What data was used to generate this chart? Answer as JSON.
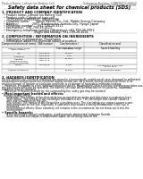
{
  "title": "Safety data sheet for chemical products (SDS)",
  "header_left": "Product Name: Lithium Ion Battery Cell",
  "header_right_line1": "Substance Number: 1SMB3EZ15-00010",
  "header_right_line2": "Established / Revision: Dec.7.2016",
  "section1_title": "1. PRODUCT AND COMPANY IDENTIFICATION",
  "section1_lines": [
    "  • Product name: Lithium Ion Battery Cell",
    "  • Product code: Cylindrical-type cell",
    "      (ICR18650, ICR18650L, ICR18650A)",
    "  • Company name:       Sanyo Electric Co., Ltd., Mobile Energy Company",
    "  • Address:               2001  Kamikosaka, Sumoto-City, Hyogo, Japan",
    "  • Telephone number :   +81-799-26-4111",
    "  • Fax number:  +81-799-26-4123",
    "  • Emergency telephone number (Weekdays) +81-799-26-3962",
    "                                    (Night and holiday) +81-799-26-4101"
  ],
  "section2_title": "2. COMPOSITION / INFORMATION ON INGREDIENTS",
  "section2_intro": "  • Substance or preparation: Preparation",
  "section2_sub": "  • Information about the chemical nature of product:",
  "table_col_headers": [
    "Component/chemical name",
    "CAS number",
    "Concentration /\nConcentration range",
    "Classification and\nhazard labeling"
  ],
  "table_rows": [
    [
      "Lithium cobalt oxide\n(LiMnCoNiO2)",
      "-",
      "(30-60%)",
      "-"
    ],
    [
      "Iron",
      "7439-89-6",
      "10-20%",
      "-"
    ],
    [
      "Aluminium",
      "7429-90-5",
      "2-6%",
      "-"
    ],
    [
      "Graphite\n(Baked graphite)\n(Artificial graphite)",
      "7782-42-5\n7782-42-5",
      "10-20%",
      "-"
    ],
    [
      "Copper",
      "7440-50-8",
      "5-10%",
      "Sensitization of the skin\ngroup No.2"
    ],
    [
      "Organic electrolyte",
      "-",
      "10-20%",
      "Inflammable liquid"
    ]
  ],
  "section3_title": "3. HAZARDS IDENTIFICATION",
  "section3_para1": "For the battery cell, chemical materials are stored in a hermetically sealed metal case, designed to withstand",
  "section3_para2": "temperatures and pressure-accumulated during normal use. As a result, during normal use, there is no",
  "section3_para3": "physical danger of ignition or explosion and there is no danger of hazardous materials leakage.",
  "section3_para4": "    However, if exposed to a fire, added mechanical shocks, decomposed, where electric overcharging takes use,",
  "section3_para5": "the gas nozzle vent can be operated. The battery cell case will be breached or fire patterns, hazardous",
  "section3_para6": "materials may be released.",
  "section3_para7": "    Moreover, if heated strongly by the surrounding fire, sooty gas may be emitted.",
  "section3_bullet1": "• Most important hazard and effects:",
  "section3_human": "Human health effects:",
  "section3_inhale": "    Inhalation: The release of the electrolyte has an anesthetize action and stimulates a respiratory tract.",
  "section3_skin1": "    Skin contact: The release of the electrolyte stimulates a skin. The electrolyte skin contact causes a",
  "section3_skin2": "    sore and stimulation on the skin.",
  "section3_eye1": "    Eye contact: The release of the electrolyte stimulates eyes. The electrolyte eye contact causes a sore",
  "section3_eye2": "    and stimulation on the eye. Especially, a substance that causes a strong inflammation of the eye is",
  "section3_eye3": "    contained.",
  "section3_env1": "    Environmental effects: Since a battery cell remains in the environment, do not throw out it into the",
  "section3_env2": "    environment.",
  "section3_bullet2": "• Specific hazards:",
  "section3_sp1": "    If the electrolyte contacts with water, it will generate detrimental hydrogen fluoride.",
  "section3_sp2": "    Since the used electrolyte is inflammable liquid, do not bring close to fire.",
  "bg_color": "#ffffff",
  "text_color": "#000000",
  "gray_color": "#555555",
  "line_color": "#aaaaaa",
  "table_border_color": "#999999"
}
